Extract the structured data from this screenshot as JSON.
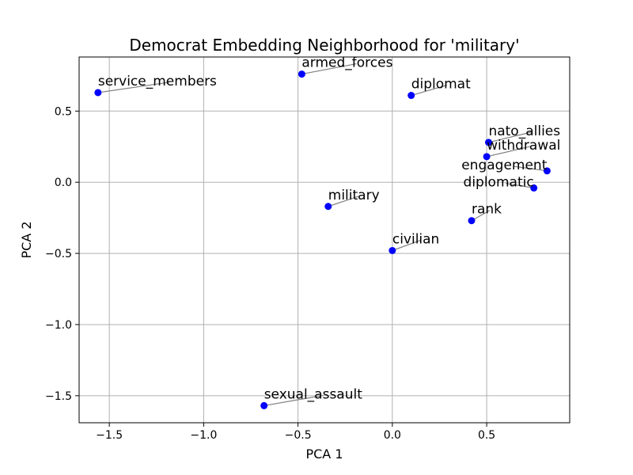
{
  "chart_data": {
    "type": "scatter",
    "title": "Democrat Embedding Neighborhood for 'military'",
    "xlabel": "PCA 1",
    "ylabel": "PCA 2",
    "xlim": [
      -1.66,
      0.94
    ],
    "ylim": [
      -1.69,
      0.88
    ],
    "xticks": [
      -1.5,
      -1.0,
      -0.5,
      0.0,
      0.5
    ],
    "xtick_labels": [
      "−1.5",
      "−1.0",
      "−0.5",
      "0.0",
      "0.5"
    ],
    "yticks": [
      -1.5,
      -1.0,
      -0.5,
      0.0,
      0.5
    ],
    "ytick_labels": [
      "−1.5",
      "−1.0",
      "−0.5",
      "0.0",
      "0.5"
    ],
    "grid": true,
    "point_color": "#0000ff",
    "leader_color": "#808080",
    "points": [
      {
        "label": "service_members",
        "x": -1.56,
        "y": 0.63,
        "lx": -1.56,
        "ly": 0.68,
        "anchor": "start"
      },
      {
        "label": "armed_forces",
        "x": -0.48,
        "y": 0.76,
        "lx": -0.48,
        "ly": 0.81,
        "anchor": "start"
      },
      {
        "label": "diplomat",
        "x": 0.1,
        "y": 0.61,
        "lx": 0.1,
        "ly": 0.66,
        "anchor": "start"
      },
      {
        "label": "nato_allies",
        "x": 0.51,
        "y": 0.28,
        "lx": 0.51,
        "ly": 0.33,
        "anchor": "start"
      },
      {
        "label": "withdrawal",
        "x": 0.5,
        "y": 0.18,
        "lx": 0.5,
        "ly": 0.23,
        "anchor": "start"
      },
      {
        "label": "engagement",
        "x": 0.82,
        "y": 0.08,
        "lx": 0.82,
        "ly": 0.09,
        "anchor": "end"
      },
      {
        "label": "diplomatic",
        "x": 0.75,
        "y": -0.04,
        "lx": 0.75,
        "ly": -0.03,
        "anchor": "end"
      },
      {
        "label": "military",
        "x": -0.34,
        "y": -0.17,
        "lx": -0.34,
        "ly": -0.12,
        "anchor": "start"
      },
      {
        "label": "rank",
        "x": 0.42,
        "y": -0.27,
        "lx": 0.42,
        "ly": -0.22,
        "anchor": "start"
      },
      {
        "label": "civilian",
        "x": 0.0,
        "y": -0.48,
        "lx": 0.0,
        "ly": -0.43,
        "anchor": "start"
      },
      {
        "label": "sexual_assault",
        "x": -0.68,
        "y": -1.57,
        "lx": -0.68,
        "ly": -1.52,
        "anchor": "start"
      }
    ]
  }
}
